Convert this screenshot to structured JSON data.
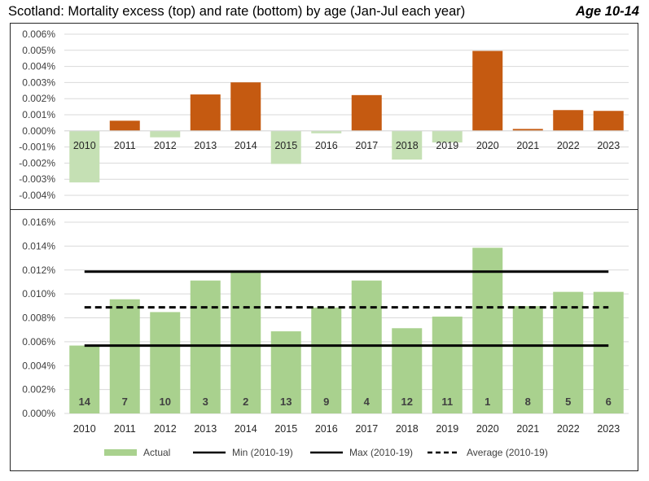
{
  "header": {
    "title": "Scotland: Mortality excess (top) and rate (bottom) by age (Jan-Jul each year)",
    "age_label": "Age 10-14"
  },
  "colors": {
    "positive": "#C55A11",
    "negative": "#C5E0B4",
    "actual": "#A9D18E",
    "line": "#000000",
    "grid": "#D9D9D9"
  },
  "chart_data": [
    {
      "type": "bar",
      "categories": [
        "2010",
        "2011",
        "2012",
        "2013",
        "2014",
        "2015",
        "2016",
        "2017",
        "2018",
        "2019",
        "2020",
        "2021",
        "2022",
        "2023"
      ],
      "values": [
        -0.0032,
        0.00063,
        -0.0004,
        0.00226,
        0.00301,
        -0.00205,
        -0.00015,
        0.00222,
        -0.00178,
        -0.00072,
        0.00496,
        0.00012,
        0.00129,
        0.00124
      ],
      "unit": "%",
      "ylim": [
        -0.004,
        0.006
      ],
      "yticks": [
        "-0.004%",
        "-0.003%",
        "-0.002%",
        "-0.001%",
        "0.000%",
        "0.001%",
        "0.002%",
        "0.003%",
        "0.004%",
        "0.005%",
        "0.006%"
      ],
      "grid": true
    },
    {
      "type": "bar",
      "categories": [
        "2010",
        "2011",
        "2012",
        "2013",
        "2014",
        "2015",
        "2016",
        "2017",
        "2018",
        "2019",
        "2020",
        "2021",
        "2022",
        "2023"
      ],
      "series": [
        {
          "name": "Actual",
          "values": [
            0.00568,
            0.00955,
            0.00848,
            0.01112,
            0.01186,
            0.00687,
            0.00886,
            0.01112,
            0.00713,
            0.0081,
            0.01386,
            0.00898,
            0.01017,
            0.01017
          ]
        }
      ],
      "ranks": [
        "14",
        "7",
        "10",
        "3",
        "2",
        "13",
        "9",
        "4",
        "12",
        "11",
        "1",
        "8",
        "5",
        "6"
      ],
      "reference_lines": [
        {
          "name": "Min (2010-19)",
          "value": 0.00568,
          "style": "solid"
        },
        {
          "name": "Max (2010-19)",
          "value": 0.01186,
          "style": "solid"
        },
        {
          "name": "Average (2010-19)",
          "value": 0.00888,
          "style": "dashed"
        }
      ],
      "unit": "%",
      "ylim": [
        0,
        0.016
      ],
      "yticks": [
        "0.000%",
        "0.002%",
        "0.004%",
        "0.006%",
        "0.008%",
        "0.010%",
        "0.012%",
        "0.014%",
        "0.016%"
      ],
      "legend": [
        "Actual",
        "Min (2010-19)",
        "Max (2010-19)",
        "Average (2010-19)"
      ],
      "legend_position": "bottom",
      "grid": true
    }
  ]
}
